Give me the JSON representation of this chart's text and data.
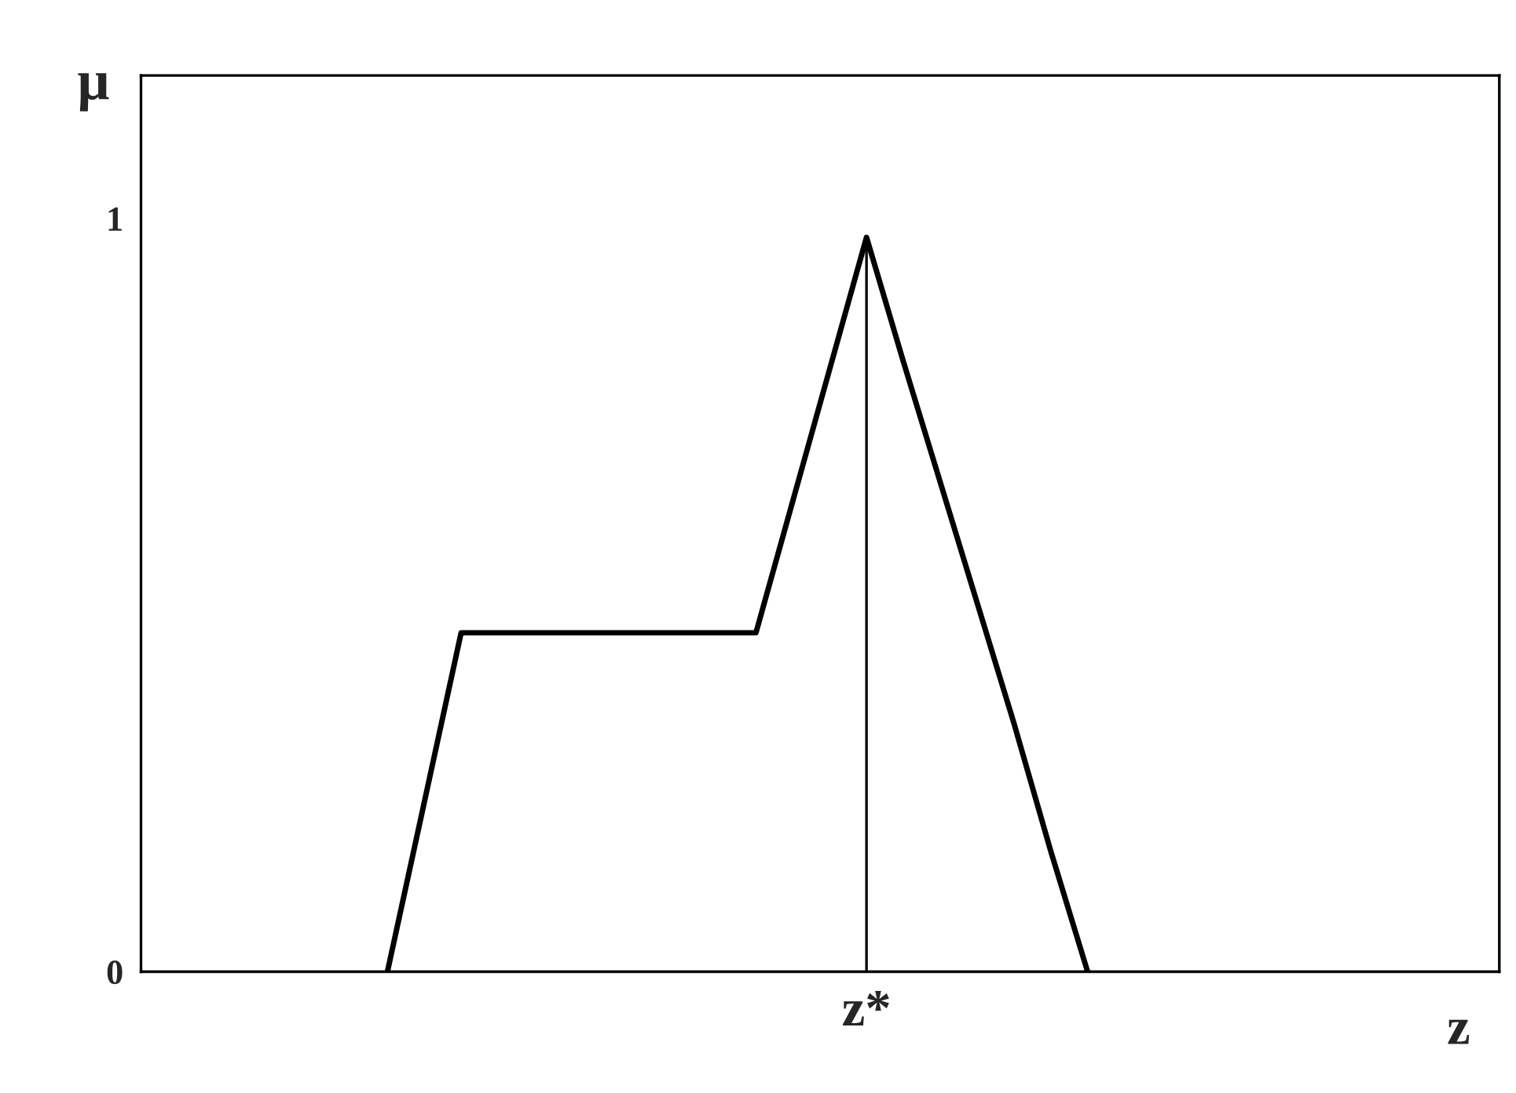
{
  "chart_data": {
    "type": "line",
    "ylabel": "μ",
    "categories": [
      null,
      null,
      null,
      null,
      null,
      null,
      null,
      null,
      null,
      null,
      null,
      null,
      null,
      "z*",
      null,
      null,
      null,
      null,
      null,
      null
    ],
    "series": [
      {
        "color": "#000000",
        "values": [
          0,
          0.225,
          0.45,
          0.45,
          0.45,
          0.45,
          0.45,
          0.45,
          0.45,
          0.45,
          0.45,
          0.625,
          0.8,
          0.975,
          0.81,
          0.65,
          0.49,
          0.33,
          0.16,
          0
        ]
      }
    ],
    "ylim": [
      0,
      1.19
    ],
    "yticks": [
      0,
      1
    ],
    "ref_lines": [
      {
        "axis": "x",
        "value": "z*",
        "color": "#000000",
        "line_style": "solid"
      }
    ],
    "annotations": [
      "z"
    ],
    "grid": false,
    "legend": false,
    "marker": "none",
    "line_style": "solid"
  }
}
